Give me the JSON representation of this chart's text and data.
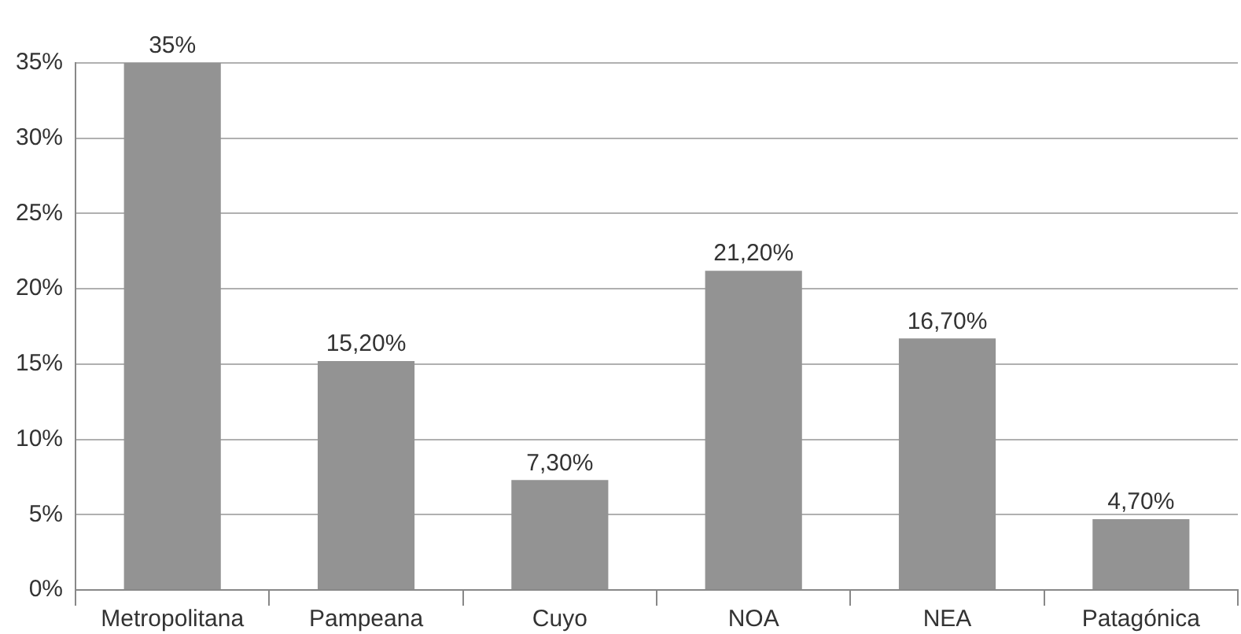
{
  "chart_data": {
    "type": "bar",
    "categories": [
      "Metropolitana",
      "Pampeana",
      "Cuyo",
      "NOA",
      "NEA",
      "Patagónica"
    ],
    "values": [
      35,
      15.2,
      7.3,
      21.2,
      16.7,
      4.7
    ],
    "color": "#939393",
    "value_labels": [
      "35%",
      "15,20%",
      "7,30%",
      "21,20%",
      "16,70%",
      "4,70%"
    ],
    "ylim": [
      0,
      35
    ],
    "yticks": [
      {
        "value": 0,
        "label": "0%"
      },
      {
        "value": 5,
        "label": "5%"
      },
      {
        "value": 10,
        "label": "10%"
      },
      {
        "value": 15,
        "label": "15%"
      },
      {
        "value": 20,
        "label": "20%"
      },
      {
        "value": 25,
        "label": "25%"
      },
      {
        "value": 30,
        "label": "30%"
      },
      {
        "value": 35,
        "label": "35%"
      }
    ],
    "grid": "y",
    "legend": false
  }
}
